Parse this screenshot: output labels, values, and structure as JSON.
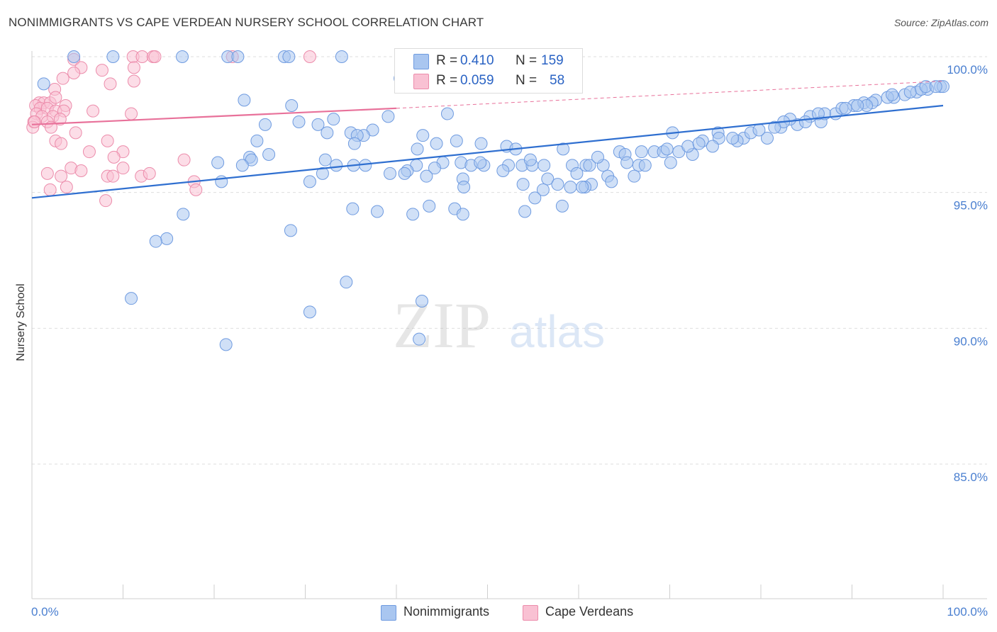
{
  "title": "NONIMMIGRANTS VS CAPE VERDEAN NURSERY SCHOOL CORRELATION CHART",
  "source": "Source: ZipAtlas.com",
  "watermark": {
    "zip": "ZIP",
    "atlas": "atlas"
  },
  "legend": {
    "rows": [
      {
        "r_label": "R =",
        "r_value": "0.410",
        "n_label": "N =",
        "n_value": "159",
        "color": "#a9c6f0",
        "border": "#6f9be0"
      },
      {
        "r_label": "R =",
        "r_value": "0.059",
        "n_label": "N =",
        "n_value": "58",
        "color": "#f9c1d3",
        "border": "#ec8cab"
      }
    ]
  },
  "bottom_legend": {
    "items": [
      {
        "label": "Nonimmigrants",
        "color": "#a9c6f0",
        "border": "#6f9be0"
      },
      {
        "label": "Cape Verdeans",
        "color": "#f9c1d3",
        "border": "#ec8cab"
      }
    ]
  },
  "chart_data": {
    "type": "scatter",
    "xlabel": "",
    "ylabel": "Nursery School",
    "x_tick_labels": [
      "0.0%",
      "100.0%"
    ],
    "y_tick_labels": [
      "100.0%",
      "95.0%",
      "90.0%",
      "85.0%"
    ],
    "y_ticks": [
      100,
      95,
      90,
      85
    ],
    "xlim": [
      0,
      100
    ],
    "ylim": [
      80,
      100.5
    ],
    "grid": true,
    "colors": {
      "blue": "#6f9be0",
      "blue_fill": "#a9c6f0",
      "pink": "#ec8cab",
      "pink_fill": "#f9c1d3",
      "blue_line": "#2f6fd0",
      "pink_line": "#e8719a",
      "tick_text": "#4a7fd0"
    },
    "series": [
      {
        "name": "Nonimmigrants",
        "trend": {
          "x0": 0,
          "y0": 94.8,
          "x1": 100,
          "y1": 98.2
        },
        "points": [
          [
            4.6,
            100
          ],
          [
            8.9,
            100
          ],
          [
            16.5,
            100
          ],
          [
            21.5,
            100
          ],
          [
            22.6,
            100
          ],
          [
            27.7,
            100
          ],
          [
            28.2,
            100
          ],
          [
            34,
            100
          ],
          [
            40.4,
            99.2
          ],
          [
            1.3,
            99
          ],
          [
            23.3,
            98.4
          ],
          [
            28.5,
            98.2
          ],
          [
            33.1,
            97.7
          ],
          [
            39.1,
            97.8
          ],
          [
            45.6,
            97.9
          ],
          [
            25.6,
            97.5
          ],
          [
            29.3,
            97.6
          ],
          [
            31.4,
            97.5
          ],
          [
            35,
            97.2
          ],
          [
            37.4,
            97.3
          ],
          [
            42.9,
            97.1
          ],
          [
            36.4,
            97.1
          ],
          [
            32.4,
            97.2
          ],
          [
            35.7,
            97.1
          ],
          [
            24.7,
            96.9
          ],
          [
            35.4,
            96.8
          ],
          [
            46.6,
            96.9
          ],
          [
            49.3,
            96.8
          ],
          [
            52.1,
            96.7
          ],
          [
            53.1,
            96.6
          ],
          [
            42.3,
            96.6
          ],
          [
            44.4,
            96.8
          ],
          [
            58.3,
            96.6
          ],
          [
            64.5,
            96.5
          ],
          [
            65.1,
            96.4
          ],
          [
            66.9,
            96.5
          ],
          [
            68.3,
            96.5
          ],
          [
            69.3,
            96.5
          ],
          [
            71,
            96.5
          ],
          [
            72.5,
            96.4
          ],
          [
            23.9,
            96.3
          ],
          [
            26,
            96.4
          ],
          [
            24.1,
            96.2
          ],
          [
            32.2,
            96.2
          ],
          [
            33.4,
            96
          ],
          [
            35.3,
            96
          ],
          [
            36.6,
            96
          ],
          [
            42.2,
            96
          ],
          [
            45.1,
            96.1
          ],
          [
            47.1,
            96.1
          ],
          [
            48.2,
            96
          ],
          [
            49.6,
            96
          ],
          [
            52.3,
            96
          ],
          [
            53.8,
            96
          ],
          [
            54.9,
            96
          ],
          [
            56.2,
            96
          ],
          [
            59.3,
            96
          ],
          [
            60.8,
            96
          ],
          [
            61.2,
            96
          ],
          [
            62.7,
            96
          ],
          [
            65.3,
            96.1
          ],
          [
            66.6,
            96
          ],
          [
            67.3,
            96
          ],
          [
            70.1,
            96.1
          ],
          [
            23.1,
            96
          ],
          [
            20.4,
            96.1
          ],
          [
            41.2,
            95.8
          ],
          [
            40.9,
            95.7
          ],
          [
            44.2,
            95.9
          ],
          [
            43.3,
            95.6
          ],
          [
            39.3,
            95.7
          ],
          [
            31.9,
            95.7
          ],
          [
            30.5,
            95.4
          ],
          [
            20.8,
            95.4
          ],
          [
            47.3,
            95.5
          ],
          [
            51.7,
            95.8
          ],
          [
            56.6,
            95.5
          ],
          [
            59.8,
            95.7
          ],
          [
            63.2,
            95.6
          ],
          [
            66.1,
            95.6
          ],
          [
            63.6,
            95.4
          ],
          [
            57.7,
            95.3
          ],
          [
            61.4,
            95.3
          ],
          [
            47.4,
            95.2
          ],
          [
            53.9,
            95.3
          ],
          [
            56.1,
            95.1
          ],
          [
            59.1,
            95.2
          ],
          [
            60.7,
            95.2
          ],
          [
            60.4,
            95.2
          ],
          [
            55.2,
            94.8
          ],
          [
            58.2,
            94.5
          ],
          [
            35.2,
            94.4
          ],
          [
            37.9,
            94.3
          ],
          [
            43.6,
            94.5
          ],
          [
            46.4,
            94.4
          ],
          [
            54.1,
            94.3
          ],
          [
            47.3,
            94.2
          ],
          [
            41.8,
            94.2
          ],
          [
            16.6,
            94.2
          ],
          [
            14.8,
            93.3
          ],
          [
            28.4,
            93.6
          ],
          [
            13.6,
            93.2
          ],
          [
            34.5,
            91.7
          ],
          [
            42.8,
            91
          ],
          [
            10.9,
            91.1
          ],
          [
            30.5,
            90.6
          ],
          [
            42.5,
            89.6
          ],
          [
            21.3,
            89.4
          ],
          [
            70.3,
            97.2
          ],
          [
            75.3,
            97.2
          ],
          [
            75.4,
            97
          ],
          [
            78.1,
            97
          ],
          [
            80.7,
            97
          ],
          [
            73.6,
            96.9
          ],
          [
            77.4,
            96.9
          ],
          [
            78.9,
            97.2
          ],
          [
            82.2,
            97.4
          ],
          [
            84,
            97.5
          ],
          [
            86.6,
            97.6
          ],
          [
            72,
            96.7
          ],
          [
            74.7,
            96.7
          ],
          [
            83.2,
            97.7
          ],
          [
            85.4,
            97.8
          ],
          [
            79.8,
            97.3
          ],
          [
            82.5,
            97.6
          ],
          [
            84.9,
            97.6
          ],
          [
            88.2,
            97.9
          ],
          [
            90.2,
            98.2
          ],
          [
            91.3,
            98.3
          ],
          [
            92.6,
            98.4
          ],
          [
            94.6,
            98.5
          ],
          [
            95.8,
            98.6
          ],
          [
            97.1,
            98.7
          ],
          [
            98.3,
            98.8
          ],
          [
            99.7,
            98.9
          ],
          [
            100,
            98.9
          ],
          [
            93.9,
            98.5
          ],
          [
            92.2,
            98.3
          ],
          [
            88.9,
            98.1
          ],
          [
            87,
            97.9
          ],
          [
            89.3,
            98.1
          ],
          [
            91.6,
            98.2
          ],
          [
            96.4,
            98.7
          ],
          [
            97.6,
            98.8
          ],
          [
            98.1,
            98.9
          ],
          [
            99.2,
            98.9
          ],
          [
            94.4,
            98.6
          ],
          [
            90.6,
            98.2
          ],
          [
            86.3,
            97.9
          ],
          [
            81.5,
            97.4
          ],
          [
            76.9,
            97
          ],
          [
            73.2,
            96.8
          ],
          [
            69.7,
            96.6
          ],
          [
            62.1,
            96.3
          ],
          [
            54.7,
            96.2
          ],
          [
            49.2,
            96.1
          ]
        ]
      },
      {
        "name": "Cape Verdeans",
        "trend": {
          "x0": 0,
          "y0": 97.5,
          "x1": 40,
          "y1": 98.1
        },
        "trend_dashed": {
          "x0": 40,
          "y0": 98.1,
          "x1": 100,
          "y1": 99.1
        },
        "points": [
          [
            11.1,
            100
          ],
          [
            12.1,
            100
          ],
          [
            13.3,
            100
          ],
          [
            13.5,
            100
          ],
          [
            22,
            100
          ],
          [
            30.5,
            100
          ],
          [
            4.6,
            99.9
          ],
          [
            5.4,
            99.6
          ],
          [
            7.7,
            99.5
          ],
          [
            3.4,
            99.2
          ],
          [
            4.6,
            99.4
          ],
          [
            8.6,
            99
          ],
          [
            11.2,
            99.1
          ],
          [
            11.2,
            99.6
          ],
          [
            2.5,
            98.8
          ],
          [
            0.8,
            98.3
          ],
          [
            1.3,
            98.3
          ],
          [
            2,
            98.3
          ],
          [
            2.6,
            98.5
          ],
          [
            3.7,
            98.2
          ],
          [
            0.4,
            98.2
          ],
          [
            0.9,
            98.1
          ],
          [
            1.7,
            98.1
          ],
          [
            2.6,
            98
          ],
          [
            3.5,
            98
          ],
          [
            6.7,
            98
          ],
          [
            0.5,
            97.9
          ],
          [
            1.1,
            97.8
          ],
          [
            2.3,
            97.8
          ],
          [
            3.1,
            97.7
          ],
          [
            1.7,
            97.6
          ],
          [
            2.1,
            97.4
          ],
          [
            0.2,
            97.6
          ],
          [
            10.9,
            97.9
          ],
          [
            4.8,
            97.2
          ],
          [
            2.6,
            96.9
          ],
          [
            3.2,
            96.8
          ],
          [
            8.3,
            96.9
          ],
          [
            6.3,
            96.5
          ],
          [
            10,
            96.5
          ],
          [
            9,
            96.3
          ],
          [
            16.7,
            96.2
          ],
          [
            10,
            95.9
          ],
          [
            4.3,
            95.9
          ],
          [
            1.7,
            95.7
          ],
          [
            3.2,
            95.6
          ],
          [
            8.3,
            95.6
          ],
          [
            8.9,
            95.6
          ],
          [
            3.8,
            95.2
          ],
          [
            2,
            95.1
          ],
          [
            17.8,
            95.4
          ],
          [
            18,
            95.1
          ],
          [
            8.1,
            94.7
          ],
          [
            12,
            95.6
          ],
          [
            12.9,
            95.7
          ],
          [
            5.4,
            95.8
          ],
          [
            0.1,
            97.4
          ],
          [
            0.3,
            97.6
          ]
        ]
      }
    ]
  }
}
